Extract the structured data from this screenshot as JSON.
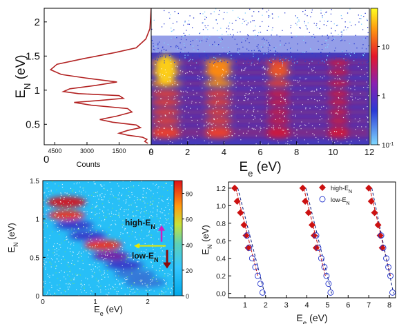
{
  "colors": {
    "profile_line": "#b22222",
    "high_marker": "#cc1111",
    "low_marker": "#2233cc",
    "high_fit": "#cc2222",
    "low_fit": "#1a2a88",
    "high_annotation": "#d020c0",
    "low_annotation": "#8b0a0a",
    "threshold_arrow": "#e8e800"
  },
  "chart_data": [
    {
      "id": "projection",
      "type": "line",
      "xlabel": "Counts",
      "ylabel": "E",
      "ylabel_sub": "N",
      "ylabel_unit": " (eV)",
      "xlim": [
        5000,
        0
      ],
      "ylim": [
        0.2,
        2.2
      ],
      "xticks": [
        "4500",
        "3000",
        "1500",
        "0"
      ],
      "xtick_values": [
        4500,
        3000,
        1500,
        0
      ],
      "yticks": [
        "0.5",
        "1",
        "1.5",
        "2"
      ],
      "ytick_values": [
        0.5,
        1.0,
        1.5,
        2.0
      ],
      "origin_label": "0",
      "x": [
        0,
        60,
        250,
        700,
        1700,
        3200,
        4400,
        4700,
        4200,
        3100,
        1600,
        2600,
        3800,
        4100,
        3400,
        1500,
        1300,
        2400,
        3600,
        2800,
        1100,
        900,
        1600,
        2400,
        1800,
        700,
        500,
        1100,
        1500,
        1100,
        400,
        200,
        300,
        150
      ],
      "y": [
        2.2,
        1.9,
        1.75,
        1.62,
        1.55,
        1.46,
        1.38,
        1.3,
        1.23,
        1.18,
        1.12,
        1.07,
        1.02,
        0.98,
        0.95,
        0.92,
        0.88,
        0.85,
        0.82,
        0.78,
        0.73,
        0.68,
        0.62,
        0.57,
        0.53,
        0.49,
        0.45,
        0.41,
        0.37,
        0.34,
        0.31,
        0.28,
        0.25,
        0.22
      ]
    },
    {
      "id": "main-map",
      "type": "heatmap",
      "xlabel": "E",
      "xlabel_sub": "e",
      "xlabel_unit": " (eV)",
      "xlim": [
        0,
        12
      ],
      "ylim": [
        0.2,
        2.2
      ],
      "xticks": [
        "0",
        "2",
        "4",
        "6",
        "8",
        "10",
        "12"
      ],
      "xtick_values": [
        0,
        2,
        4,
        6,
        8,
        10,
        12
      ],
      "colorbar": {
        "scale": "log",
        "ticks": [
          "10",
          "1",
          "10"
        ],
        "tick_values": [
          10,
          1,
          0.1
        ],
        "tick_sup": [
          "",
          "",
          "-1"
        ],
        "range": [
          0.1,
          60
        ]
      },
      "peak_columns_eV": [
        0.8,
        3.7,
        7.0,
        10.3
      ],
      "band_levels_eV": [
        0.34,
        0.42,
        0.55,
        0.68,
        0.82,
        0.95,
        1.1,
        1.26,
        1.4
      ]
    },
    {
      "id": "zoom-map",
      "type": "heatmap",
      "xlabel": "E",
      "xlabel_sub": "e",
      "xlabel_unit": " (eV)",
      "ylabel": "E",
      "ylabel_sub": "N",
      "ylabel_unit": " (eV)",
      "xlim": [
        0,
        2.5
      ],
      "ylim": [
        0,
        1.5
      ],
      "xticks": [
        "0",
        "1",
        "2"
      ],
      "xtick_values": [
        0,
        1,
        2
      ],
      "yticks": [
        "0",
        "0.5",
        "1",
        "1.5"
      ],
      "ytick_values": [
        0,
        0.5,
        1.0,
        1.5
      ],
      "colorbar": {
        "scale": "linear",
        "range": [
          0,
          90
        ],
        "ticks": [
          "0",
          "20",
          "40",
          "60",
          "80"
        ],
        "tick_values": [
          0,
          20,
          40,
          60,
          80
        ]
      },
      "blobs": [
        {
          "e": 0.45,
          "n": 1.22,
          "v": 88
        },
        {
          "e": 0.45,
          "n": 1.05,
          "v": 62
        },
        {
          "e": 0.6,
          "n": 0.92,
          "v": 45
        },
        {
          "e": 0.85,
          "n": 0.78,
          "v": 40
        },
        {
          "e": 1.15,
          "n": 0.66,
          "v": 72
        },
        {
          "e": 1.3,
          "n": 0.52,
          "v": 50
        },
        {
          "e": 1.55,
          "n": 0.4,
          "v": 38
        },
        {
          "e": 1.75,
          "n": 0.28,
          "v": 30
        },
        {
          "e": 1.95,
          "n": 0.17,
          "v": 25
        }
      ],
      "threshold_eN": 0.65,
      "annotations": {
        "high": {
          "text": "high-E",
          "sub": "N"
        },
        "low": {
          "text": "low-E",
          "sub": "N"
        }
      }
    },
    {
      "id": "scatter",
      "type": "scatter",
      "xlabel": "E",
      "xlabel_sub": "e",
      "xlabel_unit": " (eV)",
      "ylabel": "E",
      "ylabel_sub": "N",
      "ylabel_unit": " (eV)",
      "xlim": [
        0.2,
        8.3
      ],
      "ylim": [
        -0.05,
        1.27
      ],
      "xticks": [
        "1",
        "2",
        "3",
        "4",
        "5",
        "6",
        "7",
        "8"
      ],
      "xtick_values": [
        1,
        2,
        3,
        4,
        5,
        6,
        7,
        8
      ],
      "yticks": [
        "0.0",
        "0.2",
        "0.4",
        "0.6",
        "0.8",
        "1.0",
        "1.2"
      ],
      "ytick_values": [
        0,
        0.2,
        0.4,
        0.6,
        0.8,
        1.0,
        1.2
      ],
      "legend": {
        "placement": "top",
        "high": {
          "text": "high-E",
          "sub": "N"
        },
        "low": {
          "text": "low-E",
          "sub": "N"
        }
      },
      "series": [
        {
          "kind": "high",
          "x": [
            0.5,
            0.62,
            0.78,
            0.95,
            1.05,
            1.15,
            3.8,
            3.92,
            4.08,
            4.25,
            4.35,
            4.45,
            7.0,
            7.12,
            7.28,
            7.45,
            7.55,
            7.65
          ],
          "y": [
            1.2,
            1.05,
            0.92,
            0.78,
            0.66,
            0.52,
            1.2,
            1.05,
            0.92,
            0.78,
            0.66,
            0.52,
            1.2,
            1.05,
            0.92,
            0.78,
            0.66,
            0.52
          ]
        },
        {
          "kind": "low",
          "x": [
            1.1,
            1.2,
            1.35,
            1.5,
            1.62,
            1.75,
            1.85,
            4.45,
            4.55,
            4.7,
            4.85,
            4.95,
            5.05,
            5.15,
            7.6,
            7.7,
            7.85,
            7.95,
            8.05,
            8.15
          ],
          "y": [
            0.66,
            0.52,
            0.4,
            0.3,
            0.2,
            0.11,
            0.01,
            0.66,
            0.52,
            0.4,
            0.3,
            0.2,
            0.11,
            0.01,
            0.66,
            0.52,
            0.4,
            0.3,
            0.2,
            0.01
          ]
        }
      ],
      "fits": [
        {
          "kind": "high",
          "x": [
            0.55,
            1.62
          ],
          "y": [
            1.2,
            0.2
          ]
        },
        {
          "kind": "low",
          "x": [
            0.65,
            1.95
          ],
          "y": [
            1.2,
            0.0
          ]
        },
        {
          "kind": "high",
          "x": [
            3.85,
            4.9
          ],
          "y": [
            1.2,
            0.2
          ]
        },
        {
          "kind": "low",
          "x": [
            3.95,
            5.2
          ],
          "y": [
            1.2,
            0.0
          ]
        },
        {
          "kind": "high",
          "x": [
            7.05,
            8.05
          ],
          "y": [
            1.2,
            0.2
          ]
        },
        {
          "kind": "low",
          "x": [
            7.15,
            8.2
          ],
          "y": [
            1.2,
            0.0
          ]
        }
      ]
    }
  ]
}
